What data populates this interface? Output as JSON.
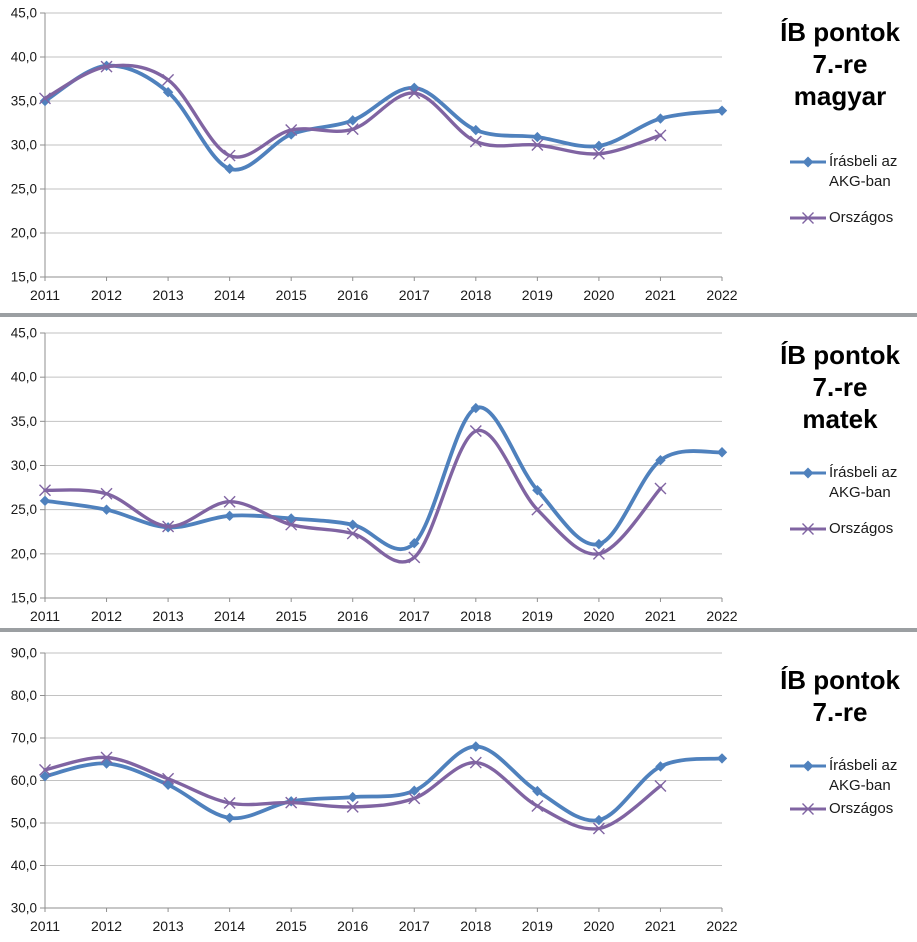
{
  "legend": {
    "akg": "Írásbeli az AKG-ban",
    "orszagos": "Országos"
  },
  "colors": {
    "akg": "#4f81bd",
    "orszagos": "#8064a2",
    "grid": "#c2c2c2",
    "axis": "#8f8f8f",
    "text": "#1a1a1a"
  },
  "chart_data": [
    {
      "type": "line",
      "title": "ÍB pontok 7.-re magyar",
      "title_lines": [
        "ÍB pontok",
        "7.-re",
        "magyar"
      ],
      "categories": [
        "2011",
        "2012",
        "2013",
        "2014",
        "2015",
        "2016",
        "2017",
        "2018",
        "2019",
        "2020",
        "2021",
        "2022"
      ],
      "ylim": [
        15,
        45
      ],
      "ystep": 5,
      "grid": true,
      "legend_position": "right",
      "series": [
        {
          "name": "Írásbeli az AKG-ban",
          "values": [
            35.0,
            39.0,
            36.0,
            27.3,
            31.2,
            32.8,
            36.5,
            31.7,
            30.9,
            29.9,
            33.0,
            33.9
          ]
        },
        {
          "name": "Országos",
          "values": [
            35.3,
            38.9,
            37.4,
            28.8,
            31.7,
            31.8,
            35.9,
            30.4,
            30.0,
            29.0,
            31.1,
            null
          ]
        }
      ]
    },
    {
      "type": "line",
      "title": "ÍB pontok 7.-re matek",
      "title_lines": [
        "ÍB pontok",
        "7.-re",
        "matek"
      ],
      "categories": [
        "2011",
        "2012",
        "2013",
        "2014",
        "2015",
        "2016",
        "2017",
        "2018",
        "2019",
        "2020",
        "2021",
        "2022"
      ],
      "ylim": [
        15,
        45
      ],
      "ystep": 5,
      "grid": true,
      "legend_position": "right",
      "series": [
        {
          "name": "Írásbeli az AKG-ban",
          "values": [
            26.0,
            25.0,
            23.0,
            24.3,
            24.0,
            23.3,
            21.2,
            36.5,
            27.2,
            21.1,
            30.6,
            31.5
          ]
        },
        {
          "name": "Országos",
          "values": [
            27.2,
            26.8,
            23.1,
            25.9,
            23.3,
            22.3,
            19.6,
            33.9,
            25.0,
            20.0,
            27.4,
            null
          ]
        }
      ]
    },
    {
      "type": "line",
      "title": "ÍB pontok 7.-re",
      "title_lines": [
        "ÍB pontok",
        "7.-re"
      ],
      "categories": [
        "2011",
        "2012",
        "2013",
        "2014",
        "2015",
        "2016",
        "2017",
        "2018",
        "2019",
        "2020",
        "2021",
        "2022"
      ],
      "ylim": [
        30,
        90
      ],
      "ystep": 10,
      "grid": true,
      "legend_position": "right",
      "series": [
        {
          "name": "Írásbeli az AKG-ban",
          "values": [
            61.0,
            64.0,
            59.0,
            51.2,
            55.1,
            56.1,
            57.6,
            68.0,
            57.5,
            50.7,
            63.3,
            65.2
          ]
        },
        {
          "name": "Országos",
          "values": [
            62.5,
            65.4,
            60.4,
            54.7,
            54.8,
            53.8,
            55.8,
            64.2,
            54.0,
            48.7,
            58.7,
            null
          ]
        }
      ]
    }
  ]
}
